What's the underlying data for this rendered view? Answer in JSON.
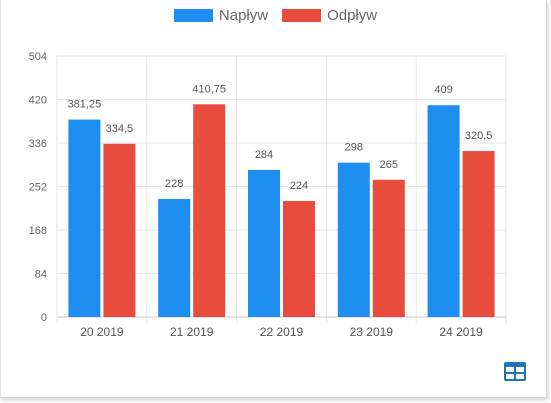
{
  "colors": {
    "inflow": "#1f8ef1",
    "outflow": "#e84c3d",
    "grid": "#e6e6e6",
    "axis_text": "#666666",
    "label_text": "#555555",
    "icon": "#1e73be"
  },
  "legend": [
    {
      "label": "Napływ",
      "color": "#1f8ef1"
    },
    {
      "label": "Odpływ",
      "color": "#e84c3d"
    }
  ],
  "chart_data": {
    "type": "bar",
    "categories": [
      "20 2019",
      "21 2019",
      "22 2019",
      "23 2019",
      "24 2019"
    ],
    "series": [
      {
        "name": "Napływ",
        "values": [
          381.25,
          228,
          284,
          298,
          409
        ],
        "labels": [
          "381,25",
          "228",
          "284",
          "298",
          "409"
        ]
      },
      {
        "name": "Odpływ",
        "values": [
          334.5,
          410.75,
          224,
          265,
          320.5
        ],
        "labels": [
          "334,5",
          "410,75",
          "224",
          "265",
          "320,5"
        ]
      }
    ],
    "yticks": [
      "0",
      "84",
      "168",
      "252",
      "336",
      "420",
      "504"
    ],
    "ylim": [
      0,
      504
    ],
    "grid": true,
    "legend_position": "top"
  },
  "toolbar": {
    "table_icon": "table-icon"
  }
}
